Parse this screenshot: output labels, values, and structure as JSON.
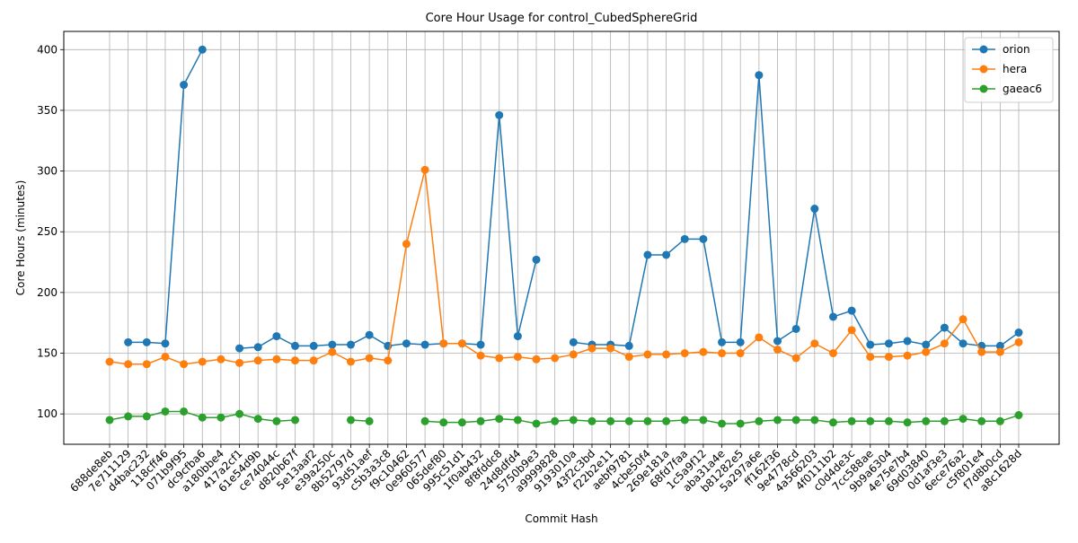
{
  "chart_data": {
    "type": "line",
    "title": "Core Hour Usage for control_CubedSphereGrid",
    "xlabel": "Commit Hash",
    "ylabel": "Core Hours (minutes)",
    "ylim": [
      75,
      415
    ],
    "yticks": [
      100,
      150,
      200,
      250,
      300,
      350,
      400
    ],
    "grid": true,
    "legend_position": "top-right",
    "categories": [
      "688de8eb",
      "7e711129",
      "d4bac232",
      "118cff46",
      "071b9f95",
      "dc9cfba6",
      "a180bbe4",
      "417a2cf1",
      "61e54d9b",
      "ce74044c",
      "d820b67f",
      "5e13aaf2",
      "e39a250c",
      "8b52797d",
      "93d51aef",
      "c5b3a3c8",
      "f9c10462",
      "0e960577",
      "065def80",
      "995c51d1",
      "1f0ab432",
      "8f8fddc8",
      "24d8dfd4",
      "5750b9e3",
      "a9999828",
      "9193010a",
      "43f2c3bd",
      "f22b2e11",
      "aebf9781",
      "4cbe50f4",
      "269e181a",
      "68fd7faa",
      "1c5a9f12",
      "aba31a4e",
      "b81282e5",
      "5a297a6e",
      "ff162f36",
      "9e4778cd",
      "4a566203",
      "4f0111b2",
      "c0d4de3c",
      "7cc588ae",
      "9b9a6304",
      "4e75e7b4",
      "69d03840",
      "0d1af3e3",
      "6ece76a2",
      "c5f801e4",
      "f7d8b0cd",
      "a8c1628d"
    ],
    "series": [
      {
        "name": "orion",
        "color": "#1f77b4",
        "values": [
          null,
          159,
          159,
          158,
          371,
          400,
          null,
          154,
          155,
          164,
          156,
          156,
          157,
          157,
          165,
          156,
          158,
          157,
          158,
          158,
          157,
          346,
          164,
          227,
          null,
          159,
          157,
          157,
          156,
          231,
          231,
          244,
          244,
          159,
          159,
          379,
          160,
          170,
          269,
          180,
          185,
          157,
          158,
          160,
          157,
          171,
          158,
          156,
          156,
          167
        ]
      },
      {
        "name": "hera",
        "color": "#ff7f0e",
        "values": [
          143,
          141,
          141,
          147,
          141,
          143,
          145,
          142,
          144,
          145,
          144,
          144,
          151,
          143,
          146,
          144,
          240,
          301,
          158,
          158,
          148,
          146,
          147,
          145,
          146,
          149,
          154,
          154,
          147,
          149,
          149,
          150,
          151,
          150,
          150,
          163,
          153,
          146,
          158,
          150,
          169,
          147,
          147,
          148,
          151,
          158,
          178,
          151,
          151,
          159
        ]
      },
      {
        "name": "gaeac6",
        "color": "#2ca02c",
        "values": [
          95,
          98,
          98,
          102,
          102,
          97,
          97,
          100,
          96,
          94,
          95,
          null,
          null,
          95,
          94,
          null,
          null,
          94,
          93,
          93,
          94,
          96,
          95,
          92,
          94,
          95,
          94,
          94,
          94,
          94,
          94,
          95,
          95,
          92,
          92,
          94,
          95,
          95,
          95,
          93,
          94,
          94,
          94,
          93,
          94,
          94,
          96,
          94,
          94,
          99
        ]
      }
    ]
  }
}
